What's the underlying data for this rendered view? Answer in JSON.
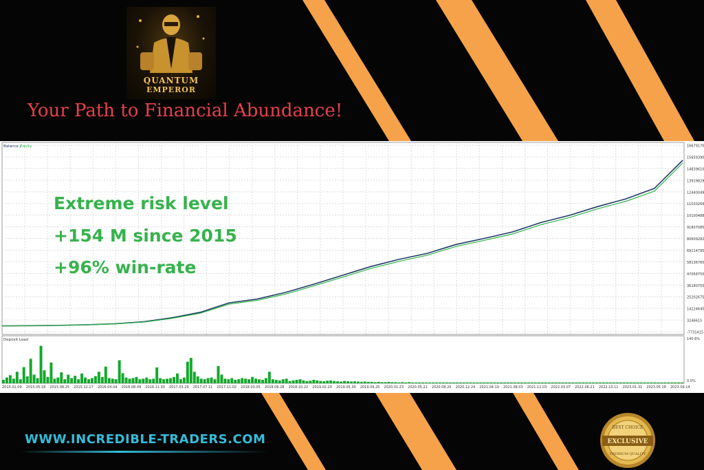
{
  "brand": {
    "logo_text_line1": "QUANTUM",
    "logo_text_line2": "EMPEROR",
    "tagline": "Your Path to Financial Abundance!"
  },
  "overlay": {
    "line1": "Extreme risk level",
    "line2": "+154 M since 2015",
    "line3": "+96% win-rate"
  },
  "footer": {
    "website": "WWW.INCREDIBLE-TRADERS.COM",
    "badge_top": "BEST CHOICE",
    "badge_middle": "EXCLUSIVE",
    "badge_bottom": "PREMIUM QUALITY"
  },
  "colors": {
    "accent_orange": "#f6a24a",
    "tagline_red": "#e8404c",
    "overlay_green": "#37b24d",
    "website_cyan": "#35bcd9",
    "balance_line": "#1f3a64",
    "equity_line": "#2db34a",
    "deposit_bar": "#14a82c"
  },
  "chart_data": [
    {
      "type": "line",
      "title": "",
      "legend": [
        "Balance",
        "Equity"
      ],
      "legend_position": "top-left",
      "grid": true,
      "y_axis_side": "right",
      "y_tick_labels": [
        "166791706",
        "156593901",
        "148396100",
        "139198297",
        "124400494",
        "110202691",
        "101004888",
        "91807085",
        "80609282",
        "69114795",
        "58136765",
        "47058755",
        "36180755",
        "25202675",
        "14224645",
        "3246615",
        "-7731415"
      ],
      "ylim": [
        -7731415,
        166791706
      ],
      "series": [
        {
          "name": "Balance",
          "x": [
            "2015.01.09",
            "2015.08.25",
            "2016.04.04",
            "2016.11.30",
            "2017.07.11",
            "2017.11.02",
            "2018.03.05",
            "2018.06.28",
            "2018.10.22",
            "2019.02.20",
            "2019.05.30",
            "2019.09.25",
            "2020.01.23",
            "2020.05.21",
            "2020.08.20",
            "2020.12.24",
            "2021.04.19",
            "2021.08.03",
            "2021.11.03",
            "2022.03.07",
            "2022.06.21",
            "2022.10.11",
            "2023.01.31",
            "2023.05.18",
            "2023.09.14"
          ],
          "values": [
            0,
            200000,
            500000,
            1100000,
            2000000,
            3800000,
            7500000,
            12500000,
            21000000,
            24500000,
            30500000,
            38000000,
            46000000,
            54000000,
            60500000,
            66000000,
            74000000,
            79500000,
            85500000,
            94000000,
            100500000,
            108500000,
            115500000,
            125000000,
            150500000
          ]
        },
        {
          "name": "Equity",
          "x": [
            "2015.01.09",
            "2015.08.25",
            "2016.04.04",
            "2016.11.30",
            "2017.07.11",
            "2017.11.02",
            "2018.03.05",
            "2018.06.28",
            "2018.10.22",
            "2019.02.20",
            "2019.05.30",
            "2019.09.25",
            "2020.01.23",
            "2020.05.21",
            "2020.08.20",
            "2020.12.24",
            "2021.04.19",
            "2021.08.03",
            "2021.11.03",
            "2022.03.07",
            "2022.06.21",
            "2022.10.11",
            "2023.01.31",
            "2023.05.18",
            "2023.09.14"
          ],
          "values": [
            0,
            190000,
            470000,
            1050000,
            1900000,
            3500000,
            6900000,
            11600000,
            19800000,
            23300000,
            29000000,
            36500000,
            44300000,
            52200000,
            58700000,
            64300000,
            72200000,
            77800000,
            83600000,
            92000000,
            98500000,
            106500000,
            113300000,
            122500000,
            148000000
          ]
        }
      ]
    },
    {
      "type": "bar",
      "title": "Deposit Load",
      "y_tick_labels": [
        "140.8%",
        "0.0%"
      ],
      "ylim": [
        0,
        140.8
      ],
      "x_tick_labels": [
        "2015.01.09",
        "2015.05.18",
        "2015.08.25",
        "2015.12.17",
        "2016.04.04",
        "2016.08.09",
        "2016.11.30",
        "2017.03.29",
        "2017.07.11",
        "2017.11.02",
        "2018.03.05",
        "2018.06.28",
        "2018.10.22",
        "2019.02.20",
        "2019.05.30",
        "2019.09.25",
        "2020.01.23",
        "2020.05.21",
        "2020.08.20",
        "2020.12.24",
        "2021.04.19",
        "2021.08.03",
        "2021.11.03",
        "2022.03.07",
        "2022.06.21",
        "2022.10.11",
        "2023.01.31",
        "2023.05.18",
        "2023.09.14"
      ],
      "values": [
        12,
        20,
        28,
        16,
        40,
        14,
        56,
        24,
        85,
        30,
        18,
        130,
        45,
        22,
        72,
        16,
        20,
        38,
        14,
        30,
        18,
        26,
        14,
        34,
        20,
        14,
        18,
        25,
        40,
        22,
        58,
        18,
        16,
        14,
        80,
        35,
        20,
        16,
        18,
        22,
        14,
        16,
        20,
        14,
        16,
        55,
        18,
        14,
        16,
        18,
        22,
        34,
        14,
        20,
        75,
        88,
        40,
        24,
        16,
        14,
        18,
        20,
        14,
        60,
        30,
        16,
        14,
        18,
        12,
        14,
        18,
        16,
        14,
        22,
        16,
        14,
        12,
        18,
        40,
        14,
        12,
        10,
        14,
        16,
        8,
        10,
        12,
        14,
        10,
        8,
        9,
        12,
        10,
        8,
        7,
        9,
        10,
        8,
        7,
        6,
        8,
        7,
        6,
        7,
        6,
        5,
        6,
        5,
        5,
        4,
        5,
        4,
        4,
        5,
        4,
        4,
        3,
        4,
        3,
        4,
        3,
        3,
        3,
        3,
        3,
        3,
        3,
        3,
        3,
        3,
        3,
        3,
        3,
        3,
        3,
        3,
        3,
        3,
        3,
        3,
        3,
        3,
        3,
        3,
        3,
        3,
        3,
        3,
        3,
        3,
        3,
        3,
        3,
        3,
        3,
        3,
        3,
        3,
        3,
        3,
        3,
        3,
        3,
        3,
        3,
        3,
        3,
        3,
        3,
        3,
        3,
        3,
        3,
        3,
        3,
        3,
        3,
        3,
        3,
        3,
        3,
        3,
        3,
        3,
        3,
        3,
        3,
        3,
        3,
        3,
        3,
        3,
        3,
        3,
        3,
        3,
        3,
        3,
        3,
        3
      ]
    }
  ]
}
